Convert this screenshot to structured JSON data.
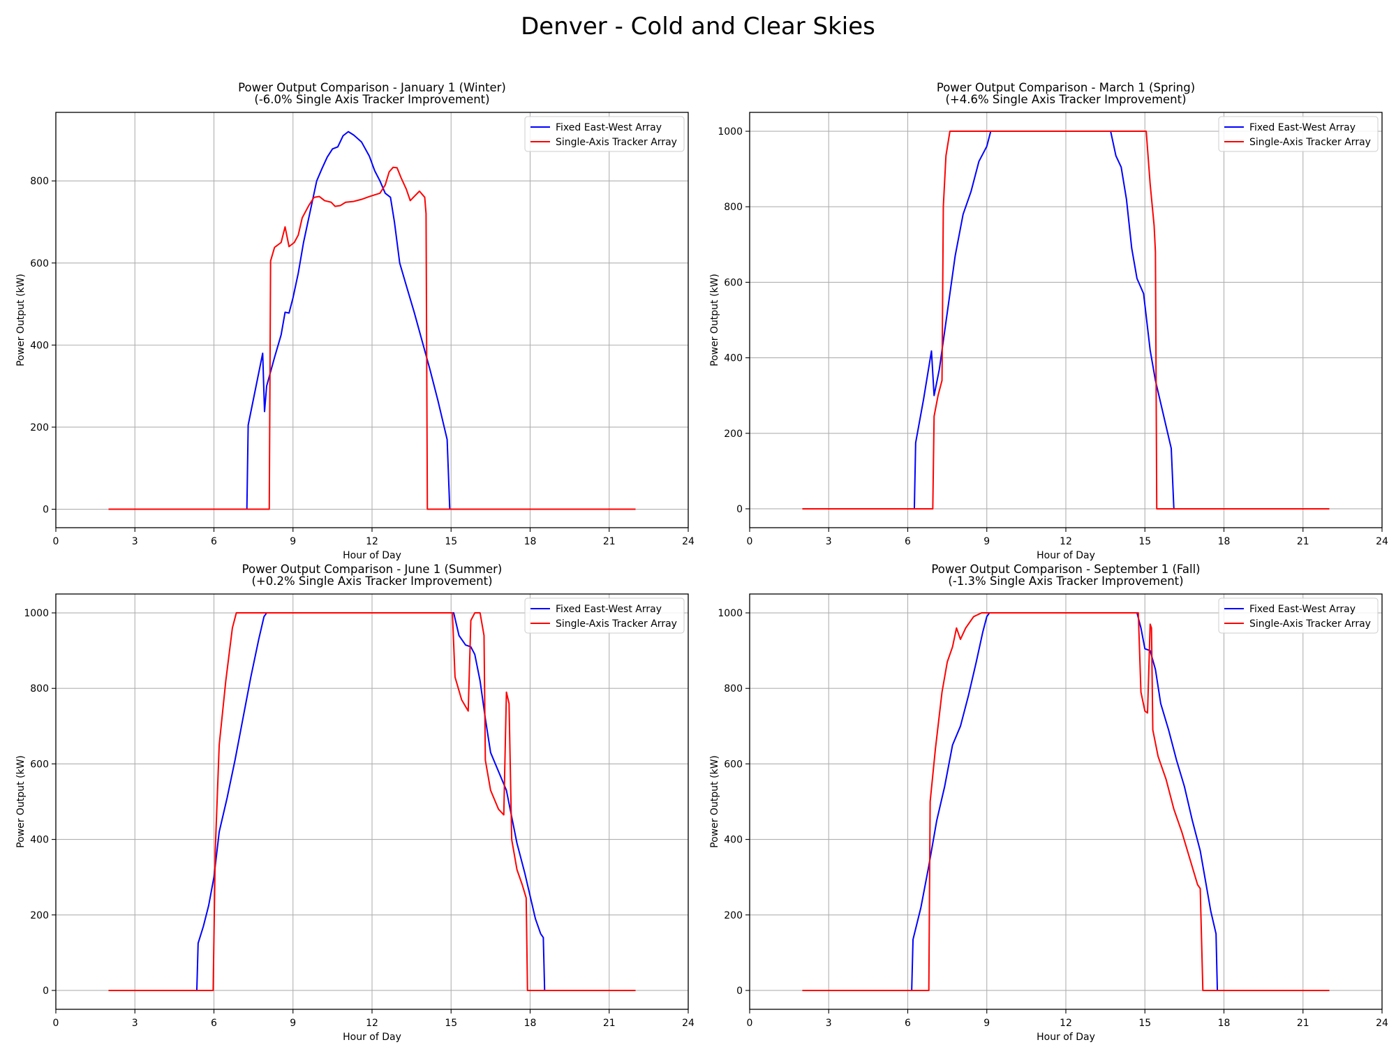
{
  "suptitle": "Denver - Cold and Clear Skies",
  "colors": {
    "fixed": "#0000ff",
    "tracker": "#ff0000",
    "grid": "#b0b0b0"
  },
  "chart_data": [
    {
      "type": "line",
      "title": "Power Output Comparison - January 1 (Winter)",
      "subtitle": "(-6.0% Single Axis Tracker Improvement)",
      "xlabel": "Hour of Day",
      "ylabel": "Power Output (kW)",
      "xlim": [
        0,
        24
      ],
      "ylim": [
        -45,
        967
      ],
      "xticks": [
        0,
        3,
        6,
        9,
        12,
        15,
        18,
        21,
        24
      ],
      "yticks": [
        0,
        200,
        400,
        600,
        800
      ],
      "grid": true,
      "legend": "top-right",
      "series": [
        {
          "name": "Fixed East-West Array",
          "color": "#0000ff",
          "points": [
            [
              2,
              0
            ],
            [
              7.25,
              0
            ],
            [
              7.3,
              205
            ],
            [
              7.85,
              380
            ],
            [
              7.92,
              238
            ],
            [
              8.0,
              300
            ],
            [
              8.3,
              370
            ],
            [
              8.55,
              425
            ],
            [
              8.7,
              480
            ],
            [
              8.85,
              478
            ],
            [
              9.0,
              515
            ],
            [
              9.2,
              575
            ],
            [
              9.4,
              650
            ],
            [
              9.7,
              740
            ],
            [
              9.9,
              800
            ],
            [
              10.1,
              830
            ],
            [
              10.3,
              858
            ],
            [
              10.5,
              878
            ],
            [
              10.7,
              883
            ],
            [
              10.9,
              910
            ],
            [
              11.1,
              920
            ],
            [
              11.3,
              912
            ],
            [
              11.6,
              895
            ],
            [
              11.9,
              860
            ],
            [
              12.1,
              825
            ],
            [
              12.3,
              800
            ],
            [
              12.5,
              770
            ],
            [
              12.7,
              760
            ],
            [
              12.85,
              700
            ],
            [
              13.05,
              600
            ],
            [
              13.3,
              545
            ],
            [
              13.6,
              480
            ],
            [
              13.9,
              410
            ],
            [
              14.2,
              340
            ],
            [
              14.5,
              265
            ],
            [
              14.85,
              170
            ],
            [
              14.95,
              0
            ],
            [
              22,
              0
            ]
          ]
        },
        {
          "name": "Single-Axis Tracker Array",
          "color": "#ff0000",
          "points": [
            [
              2,
              0
            ],
            [
              8.1,
              0
            ],
            [
              8.15,
              605
            ],
            [
              8.3,
              638
            ],
            [
              8.55,
              650
            ],
            [
              8.7,
              688
            ],
            [
              8.85,
              640
            ],
            [
              9.05,
              650
            ],
            [
              9.2,
              668
            ],
            [
              9.35,
              710
            ],
            [
              9.6,
              740
            ],
            [
              9.8,
              760
            ],
            [
              10.0,
              762
            ],
            [
              10.2,
              752
            ],
            [
              10.45,
              748
            ],
            [
              10.6,
              738
            ],
            [
              10.8,
              740
            ],
            [
              11.0,
              748
            ],
            [
              11.3,
              750
            ],
            [
              11.6,
              755
            ],
            [
              11.9,
              762
            ],
            [
              12.1,
              766
            ],
            [
              12.3,
              770
            ],
            [
              12.5,
              790
            ],
            [
              12.65,
              822
            ],
            [
              12.8,
              833
            ],
            [
              12.95,
              832
            ],
            [
              13.1,
              808
            ],
            [
              13.3,
              780
            ],
            [
              13.45,
              752
            ],
            [
              13.6,
              762
            ],
            [
              13.8,
              775
            ],
            [
              14.0,
              760
            ],
            [
              14.05,
              720
            ],
            [
              14.1,
              0
            ],
            [
              22,
              0
            ]
          ]
        }
      ]
    },
    {
      "type": "line",
      "title": "Power Output Comparison - March 1 (Spring)",
      "subtitle": "(+4.6% Single Axis Tracker Improvement)",
      "xlabel": "Hour of Day",
      "ylabel": "Power Output (kW)",
      "xlim": [
        0,
        24
      ],
      "ylim": [
        -50,
        1050
      ],
      "xticks": [
        0,
        3,
        6,
        9,
        12,
        15,
        18,
        21,
        24
      ],
      "yticks": [
        0,
        200,
        400,
        600,
        800,
        1000
      ],
      "grid": true,
      "legend": "top-right",
      "series": [
        {
          "name": "Fixed East-West Array",
          "color": "#0000ff",
          "points": [
            [
              2,
              0
            ],
            [
              6.25,
              0
            ],
            [
              6.3,
              175
            ],
            [
              6.6,
              290
            ],
            [
              6.9,
              418
            ],
            [
              7.0,
              300
            ],
            [
              7.2,
              370
            ],
            [
              7.5,
              520
            ],
            [
              7.8,
              670
            ],
            [
              8.1,
              780
            ],
            [
              8.4,
              840
            ],
            [
              8.7,
              920
            ],
            [
              9.0,
              960
            ],
            [
              9.15,
              1000
            ],
            [
              13.7,
              1000
            ],
            [
              13.9,
              935
            ],
            [
              14.1,
              905
            ],
            [
              14.3,
              820
            ],
            [
              14.5,
              690
            ],
            [
              14.7,
              610
            ],
            [
              14.95,
              570
            ],
            [
              15.05,
              510
            ],
            [
              15.2,
              420
            ],
            [
              15.4,
              340
            ],
            [
              15.7,
              250
            ],
            [
              16.0,
              160
            ],
            [
              16.1,
              0
            ],
            [
              22,
              0
            ]
          ]
        },
        {
          "name": "Single-Axis Tracker Array",
          "color": "#ff0000",
          "points": [
            [
              2,
              0
            ],
            [
              6.95,
              0
            ],
            [
              7.0,
              245
            ],
            [
              7.15,
              300
            ],
            [
              7.3,
              340
            ],
            [
              7.35,
              800
            ],
            [
              7.45,
              935
            ],
            [
              7.6,
              1000
            ],
            [
              15.05,
              1000
            ],
            [
              15.2,
              860
            ],
            [
              15.35,
              750
            ],
            [
              15.4,
              680
            ],
            [
              15.45,
              0
            ],
            [
              22,
              0
            ]
          ]
        }
      ]
    },
    {
      "type": "line",
      "title": "Power Output Comparison - June 1 (Summer)",
      "subtitle": "(+0.2% Single Axis Tracker Improvement)",
      "xlabel": "Hour of Day",
      "ylabel": "Power Output (kW)",
      "xlim": [
        0,
        24
      ],
      "ylim": [
        -50,
        1050
      ],
      "xticks": [
        0,
        3,
        6,
        9,
        12,
        15,
        18,
        21,
        24
      ],
      "yticks": [
        0,
        200,
        400,
        600,
        800,
        1000
      ],
      "grid": true,
      "legend": "top-right",
      "series": [
        {
          "name": "Fixed East-West Array",
          "color": "#0000ff",
          "points": [
            [
              2,
              0
            ],
            [
              5.35,
              0
            ],
            [
              5.4,
              125
            ],
            [
              5.6,
              170
            ],
            [
              5.8,
              225
            ],
            [
              6.0,
              300
            ],
            [
              6.2,
              420
            ],
            [
              6.5,
              510
            ],
            [
              6.8,
              610
            ],
            [
              7.1,
              720
            ],
            [
              7.4,
              830
            ],
            [
              7.7,
              930
            ],
            [
              7.9,
              990
            ],
            [
              8.0,
              1000
            ],
            [
              15.1,
              1000
            ],
            [
              15.3,
              940
            ],
            [
              15.55,
              915
            ],
            [
              15.75,
              910
            ],
            [
              15.9,
              890
            ],
            [
              16.1,
              820
            ],
            [
              16.3,
              720
            ],
            [
              16.5,
              630
            ],
            [
              16.8,
              580
            ],
            [
              17.1,
              530
            ],
            [
              17.3,
              460
            ],
            [
              17.5,
              390
            ],
            [
              17.8,
              310
            ],
            [
              18.0,
              250
            ],
            [
              18.2,
              190
            ],
            [
              18.4,
              150
            ],
            [
              18.5,
              140
            ],
            [
              18.55,
              0
            ],
            [
              22,
              0
            ]
          ]
        },
        {
          "name": "Single-Axis Tracker Array",
          "color": "#ff0000",
          "points": [
            [
              2,
              0
            ],
            [
              5.97,
              0
            ],
            [
              6.05,
              370
            ],
            [
              6.2,
              650
            ],
            [
              6.45,
              820
            ],
            [
              6.7,
              960
            ],
            [
              6.85,
              1000
            ],
            [
              15.05,
              1000
            ],
            [
              15.15,
              830
            ],
            [
              15.4,
              770
            ],
            [
              15.65,
              740
            ],
            [
              15.75,
              980
            ],
            [
              15.9,
              1000
            ],
            [
              16.1,
              1000
            ],
            [
              16.25,
              940
            ],
            [
              16.3,
              610
            ],
            [
              16.5,
              530
            ],
            [
              16.8,
              480
            ],
            [
              17.0,
              465
            ],
            [
              17.1,
              790
            ],
            [
              17.2,
              760
            ],
            [
              17.3,
              400
            ],
            [
              17.5,
              320
            ],
            [
              17.7,
              280
            ],
            [
              17.85,
              245
            ],
            [
              17.9,
              0
            ],
            [
              22,
              0
            ]
          ]
        }
      ]
    },
    {
      "type": "line",
      "title": "Power Output Comparison - September 1 (Fall)",
      "subtitle": "(-1.3% Single Axis Tracker Improvement)",
      "xlabel": "Hour of Day",
      "ylabel": "Power Output (kW)",
      "xlim": [
        0,
        24
      ],
      "ylim": [
        -50,
        1050
      ],
      "xticks": [
        0,
        3,
        6,
        9,
        12,
        15,
        18,
        21,
        24
      ],
      "yticks": [
        0,
        200,
        400,
        600,
        800,
        1000
      ],
      "grid": true,
      "legend": "top-right",
      "series": [
        {
          "name": "Fixed East-West Array",
          "color": "#0000ff",
          "points": [
            [
              2,
              0
            ],
            [
              6.15,
              0
            ],
            [
              6.2,
              135
            ],
            [
              6.5,
              220
            ],
            [
              6.8,
              330
            ],
            [
              7.1,
              450
            ],
            [
              7.4,
              540
            ],
            [
              7.7,
              650
            ],
            [
              8.0,
              700
            ],
            [
              8.3,
              780
            ],
            [
              8.6,
              870
            ],
            [
              8.85,
              950
            ],
            [
              9.0,
              990
            ],
            [
              9.1,
              1000
            ],
            [
              14.7,
              1000
            ],
            [
              14.85,
              960
            ],
            [
              15.0,
              905
            ],
            [
              15.2,
              900
            ],
            [
              15.4,
              850
            ],
            [
              15.6,
              760
            ],
            [
              15.9,
              690
            ],
            [
              16.2,
              610
            ],
            [
              16.5,
              540
            ],
            [
              16.8,
              450
            ],
            [
              17.1,
              370
            ],
            [
              17.3,
              290
            ],
            [
              17.5,
              210
            ],
            [
              17.7,
              150
            ],
            [
              17.75,
              0
            ],
            [
              22,
              0
            ]
          ]
        },
        {
          "name": "Single-Axis Tracker Array",
          "color": "#ff0000",
          "points": [
            [
              2,
              0
            ],
            [
              6.8,
              0
            ],
            [
              6.85,
              500
            ],
            [
              7.05,
              640
            ],
            [
              7.3,
              790
            ],
            [
              7.5,
              870
            ],
            [
              7.7,
              910
            ],
            [
              7.85,
              960
            ],
            [
              8.0,
              930
            ],
            [
              8.2,
              960
            ],
            [
              8.5,
              990
            ],
            [
              8.8,
              1000
            ],
            [
              14.75,
              1000
            ],
            [
              14.85,
              790
            ],
            [
              15.0,
              740
            ],
            [
              15.1,
              735
            ],
            [
              15.2,
              970
            ],
            [
              15.25,
              960
            ],
            [
              15.3,
              690
            ],
            [
              15.5,
              620
            ],
            [
              15.8,
              560
            ],
            [
              16.1,
              480
            ],
            [
              16.4,
              420
            ],
            [
              16.7,
              350
            ],
            [
              17.0,
              280
            ],
            [
              17.1,
              270
            ],
            [
              17.2,
              0
            ],
            [
              22,
              0
            ]
          ]
        }
      ]
    }
  ]
}
